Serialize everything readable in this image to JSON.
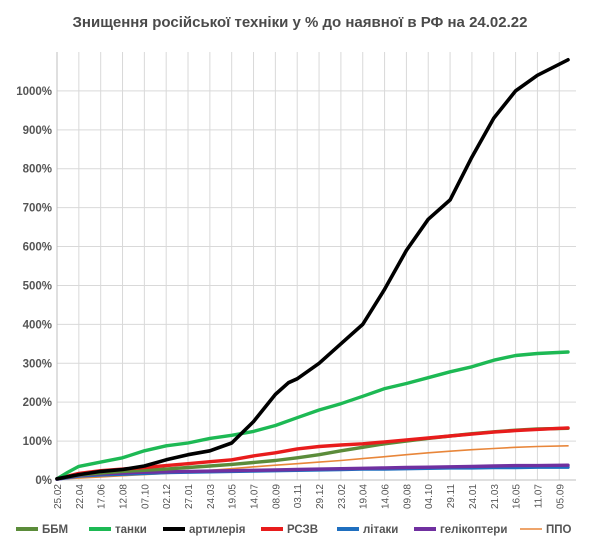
{
  "chart_data": {
    "type": "line",
    "title": "Знищення російської техніки у % до наявної в РФ на 24.02.22",
    "xlabel": "",
    "ylabel": "",
    "ylim": [
      0,
      1100
    ],
    "yticks": [
      0,
      100,
      200,
      300,
      400,
      500,
      600,
      700,
      800,
      900,
      1000
    ],
    "ytick_suffix": "%",
    "grid": true,
    "legend_position": "bottom",
    "x_categories": [
      "25.02",
      "22.04",
      "17.06",
      "12.08",
      "07.10",
      "02.12",
      "27.01",
      "24.03",
      "19.05",
      "14.07",
      "08.09",
      "03.11",
      "29.12",
      "23.02",
      "19.04",
      "14.06",
      "09.08",
      "04.10",
      "29.11",
      "24.01",
      "21.03",
      "16.05",
      "11.07",
      "05.09"
    ],
    "series": [
      {
        "name": "ББМ",
        "color": "#5b8c3a",
        "x": [
          0,
          1,
          2,
          3,
          4,
          5,
          6,
          7,
          8,
          9,
          10,
          11,
          12,
          13,
          14,
          15,
          16,
          17,
          18,
          19,
          20,
          21,
          22,
          23.4
        ],
        "y": [
          3,
          13,
          18,
          22,
          25,
          28,
          32,
          36,
          40,
          45,
          50,
          57,
          65,
          75,
          84,
          93,
          100,
          107,
          113,
          119,
          124,
          128,
          131,
          133
        ]
      },
      {
        "name": "танки",
        "color": "#1db954",
        "x": [
          0,
          0.5,
          1,
          2,
          3,
          4,
          5,
          6,
          7,
          8,
          9,
          10,
          11,
          12,
          13,
          14,
          15,
          16,
          17,
          18,
          19,
          20,
          21,
          22,
          23.4
        ],
        "y": [
          3,
          20,
          35,
          46,
          57,
          75,
          88,
          95,
          107,
          115,
          125,
          140,
          160,
          180,
          196,
          215,
          235,
          248,
          263,
          278,
          291,
          308,
          320,
          325,
          329
        ]
      },
      {
        "name": "артилерія",
        "color": "#000000",
        "x": [
          0,
          1,
          2,
          3,
          4,
          5,
          6,
          7,
          8,
          9,
          10,
          10.6,
          11,
          12,
          13,
          14,
          15,
          16,
          17,
          18,
          19,
          20,
          21,
          22,
          23.4
        ],
        "y": [
          3,
          14,
          22,
          27,
          36,
          52,
          65,
          75,
          95,
          150,
          220,
          250,
          260,
          300,
          350,
          400,
          490,
          590,
          670,
          720,
          830,
          930,
          1000,
          1040,
          1080
        ]
      },
      {
        "name": "РСЗВ",
        "color": "#e81c1c",
        "x": [
          0,
          1,
          2,
          3,
          4,
          5,
          6,
          7,
          8,
          9,
          10,
          11,
          12,
          13,
          14,
          15,
          16,
          17,
          18,
          19,
          20,
          21,
          22,
          23.4
        ],
        "y": [
          3,
          17,
          24,
          28,
          32,
          37,
          42,
          47,
          52,
          62,
          70,
          80,
          86,
          90,
          93,
          98,
          103,
          108,
          113,
          118,
          123,
          127,
          130,
          134
        ]
      },
      {
        "name": "літаки",
        "color": "#1f6fbf",
        "x": [
          0,
          1,
          2,
          3,
          4,
          5,
          6,
          7,
          8,
          9,
          10,
          11,
          12,
          13,
          14,
          15,
          16,
          17,
          18,
          19,
          20,
          21,
          22,
          23.4
        ],
        "y": [
          2,
          10,
          13,
          15,
          17,
          19,
          20,
          21,
          22,
          23,
          24,
          25,
          26,
          27,
          28,
          28,
          29,
          30,
          31,
          31,
          32,
          32,
          33,
          33
        ]
      },
      {
        "name": "гелікоптери",
        "color": "#7030a0",
        "x": [
          0,
          1,
          2,
          3,
          4,
          5,
          6,
          7,
          8,
          9,
          10,
          11,
          12,
          13,
          14,
          15,
          16,
          17,
          18,
          19,
          20,
          21,
          22,
          23.4
        ],
        "y": [
          2,
          12,
          16,
          18,
          20,
          21,
          22,
          23,
          24,
          25,
          26,
          27,
          28,
          29,
          30,
          31,
          32,
          33,
          34,
          35,
          36,
          37,
          37,
          38
        ]
      },
      {
        "name": "ППО",
        "color": "#e8863a",
        "x": [
          0,
          1,
          2,
          3,
          4,
          5,
          6,
          7,
          8,
          9,
          10,
          11,
          12,
          13,
          14,
          15,
          16,
          17,
          18,
          19,
          20,
          21,
          22,
          23.4
        ],
        "y": [
          2,
          5,
          8,
          11,
          14,
          17,
          20,
          25,
          29,
          34,
          38,
          42,
          46,
          50,
          55,
          60,
          65,
          70,
          74,
          78,
          81,
          84,
          86,
          88
        ]
      }
    ]
  }
}
